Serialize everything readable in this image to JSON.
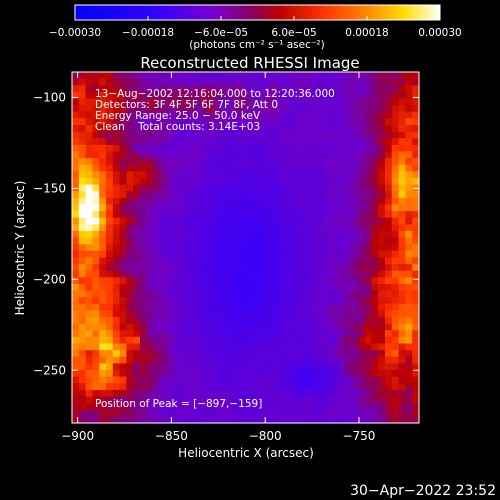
{
  "chart_data": {
    "type": "heatmap",
    "title": "Reconstructed RHESSI Image",
    "xlabel": "Heliocentric X (arcsec)",
    "ylabel": "Heliocentric Y (arcsec)",
    "xlim": [
      -903,
      -718
    ],
    "ylim": [
      -279,
      -86
    ],
    "x_ticks": [
      -900,
      -850,
      -800,
      -750
    ],
    "x_tick_labels": [
      "−900",
      "−850",
      "−800",
      "−750"
    ],
    "y_ticks": [
      -100,
      -150,
      -200,
      -250
    ],
    "y_tick_labels": [
      "−100",
      "−150",
      "−200",
      "−250"
    ],
    "colorbar": {
      "range": [
        -0.0003,
        0.0003
      ],
      "ticks": [
        -0.0003,
        -0.00018,
        -6e-05,
        6e-05,
        0.00018,
        0.0003
      ],
      "tick_labels": [
        "−0.00030",
        "−0.00018",
        "−6.0e−05",
        "6.0e−05",
        "0.00018",
        "0.00030"
      ],
      "units_label": "(photons cm⁻² s⁻¹ asec⁻²)",
      "colormap": "blue-purple-red-yellow-white"
    },
    "annotations": {
      "time_range": "13−Aug−2002 12:16:04.000 to 12:20:36.000",
      "detectors": "Detectors: 3F 4F 5F 6F 7F 8F, Att 0",
      "energy_range": "Energy Range: 25.0 − 50.0 keV",
      "method_counts": "Clean    Total counts: 3.14E+03",
      "peak": "Position of Peak = [−897,−159]"
    },
    "peak_position": [
      -897,
      -159
    ],
    "grid": false,
    "image_grid": {
      "cols": 51,
      "rows": 53,
      "x_range": [
        -903,
        -718
      ],
      "y_range": [
        -279,
        -86
      ],
      "description": "Emission highest along left edge (peak near x=-897, y=-159) and right edge near x=-725; central region near-zero/negative (purple-blue)."
    }
  },
  "timestamp": "30−Apr−2022 23:52",
  "colors": {
    "background": "#000000",
    "text": "#ffffff"
  }
}
